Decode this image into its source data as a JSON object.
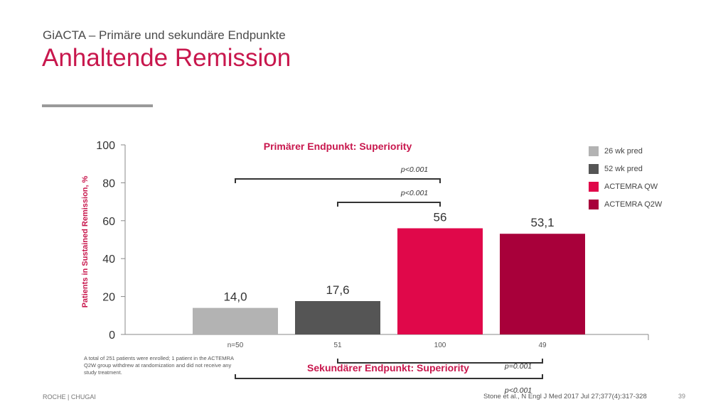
{
  "slide": {
    "subtitle": "GiACTA – Primäre und sekundäre Endpunkte",
    "title": "Anhaltende Remission",
    "note": "A total of 251 patients were enrolled; 1 patient in the ACTEMRA Q2W group withdrew at randomization and did not receive any study treatment.",
    "footer_left": "ROCHE | CHUGAI",
    "footer_ref": "Stone et al., N Engl J Med 2017 Jul 27;377(4):317-328",
    "page_number": "39"
  },
  "chart_data": {
    "type": "bar",
    "ylabel": "Patients in Sustained Remission, %",
    "ylim": [
      0,
      100
    ],
    "yticks": [
      0,
      20,
      40,
      60,
      80,
      100
    ],
    "categories": [
      "n=50",
      "51",
      "100",
      "49"
    ],
    "series": [
      {
        "name": "26 wk pred",
        "value": 14.0,
        "label": "14,0",
        "color": "#b3b3b3"
      },
      {
        "name": "52 wk pred",
        "value": 17.6,
        "label": "17,6",
        "color": "#555555"
      },
      {
        "name": "ACTEMRA QW",
        "value": 56,
        "label": "56",
        "color": "#e0084a"
      },
      {
        "name": "ACTEMRA Q2W",
        "value": 53.1,
        "label": "53,1",
        "color": "#a8003a"
      }
    ],
    "legend_position": "right",
    "primary_header": "Primärer Endpunkt: Superiority",
    "secondary_header": "Sekundärer Endpunkt: Superiority",
    "comparisons": [
      {
        "from": 0,
        "to": 2,
        "label": "p<0.001",
        "group": "primary"
      },
      {
        "from": 1,
        "to": 2,
        "label": "p<0.001",
        "group": "primary"
      },
      {
        "from": 1,
        "to": 3,
        "label": "p=0.001",
        "group": "secondary"
      },
      {
        "from": 0,
        "to": 3,
        "label": "p<0.001",
        "group": "secondary"
      }
    ]
  }
}
